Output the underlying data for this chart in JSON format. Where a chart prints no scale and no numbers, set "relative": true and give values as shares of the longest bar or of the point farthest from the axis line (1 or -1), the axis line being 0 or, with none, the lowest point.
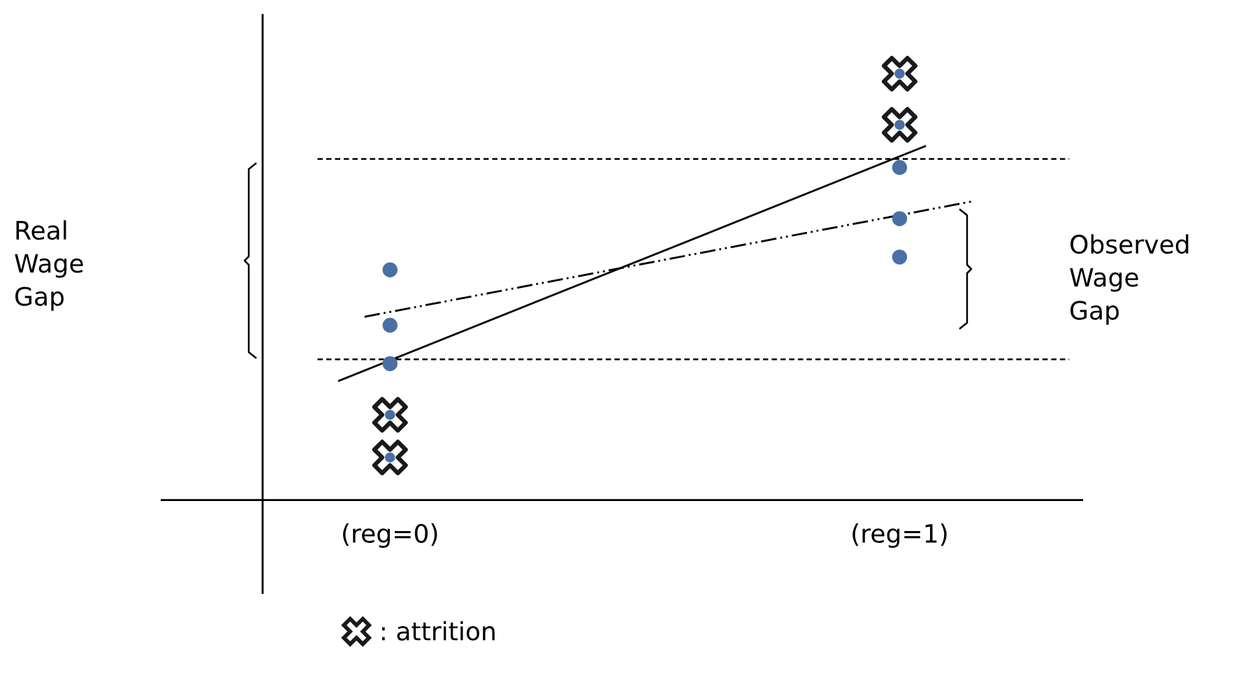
{
  "chart_data": {
    "type": "scatter",
    "relative": true,
    "xlim": [
      -0.45,
      1.36
    ],
    "xticks": [
      {
        "value": 0,
        "label": "(reg=0)"
      },
      {
        "value": 1,
        "label": "(reg=1)"
      }
    ],
    "series": [
      {
        "color": "#4a6fa5",
        "marker": "circle",
        "x": [
          0,
          0,
          0,
          1,
          1,
          1
        ],
        "values": [
          0.54,
          0.41,
          0.32,
          0.78,
          0.66,
          0.57
        ]
      },
      {
        "name": ": attrition",
        "color": "#1a1a1a",
        "marker": "cross",
        "x": [
          0,
          0,
          1,
          1
        ],
        "values": [
          0.2,
          0.1,
          1.0,
          0.88
        ]
      },
      {
        "type": "line",
        "color": "#000000",
        "line_style": "solid",
        "x": [
          -0.1,
          1.05
        ],
        "values": [
          0.28,
          0.83
        ]
      },
      {
        "type": "line",
        "color": "#000000",
        "line_style": "dashdot",
        "x": [
          -0.05,
          1.14
        ],
        "values": [
          0.43,
          0.7
        ]
      }
    ],
    "ref_lines": [
      {
        "axis": "y",
        "value": 0.8,
        "color": "#000000",
        "line_style": "dashed"
      },
      {
        "axis": "y",
        "value": 0.33,
        "color": "#000000",
        "line_style": "dashed"
      },
      {
        "axis": "x",
        "value": -0.25,
        "color": "#000000",
        "line_style": "solid"
      }
    ],
    "annotations": [
      "Real\nWage\nGap",
      "Observed\nWage\nGap"
    ],
    "legend": "bottom",
    "grid": false
  }
}
